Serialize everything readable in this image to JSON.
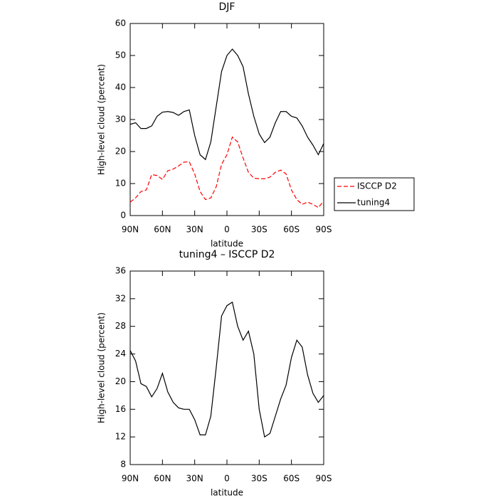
{
  "chart_data": [
    {
      "type": "line",
      "title": "DJF",
      "xlabel": "latitude",
      "ylabel": "High-level cloud (percent)",
      "x": [
        90,
        85,
        80,
        75,
        70,
        65,
        60,
        55,
        50,
        45,
        40,
        35,
        30,
        25,
        20,
        15,
        10,
        5,
        0,
        -5,
        -10,
        -15,
        -20,
        -25,
        -30,
        -35,
        -40,
        -45,
        -50,
        -55,
        -60,
        -65,
        -70,
        -75,
        -80,
        -85,
        -90
      ],
      "xlim": [
        90,
        -90
      ],
      "xticks": [
        {
          "value": 90,
          "label": "90N"
        },
        {
          "value": 60,
          "label": "60N"
        },
        {
          "value": 30,
          "label": "30N"
        },
        0,
        {
          "value": -30,
          "label": "30S"
        },
        {
          "value": -60,
          "label": "60S"
        },
        {
          "value": -90,
          "label": "90S"
        }
      ],
      "ylim": [
        0,
        60
      ],
      "yticks": [
        0,
        10,
        20,
        30,
        40,
        50,
        60
      ],
      "legend": "right",
      "series": [
        {
          "name": "ISCCP D2",
          "color": "#ff0000",
          "linestyle": "dashed",
          "values": [
            4.2,
            5.5,
            7.5,
            8,
            12.8,
            12.5,
            11.3,
            14,
            14.5,
            15.5,
            16.7,
            16.8,
            13,
            7.5,
            5,
            5.5,
            9,
            16,
            19,
            24.5,
            23,
            18,
            13.5,
            11.7,
            11.5,
            11.5,
            12,
            13.5,
            14.2,
            13,
            8,
            5,
            3.5,
            4.2,
            3.5,
            2.5,
            4.5
          ]
        },
        {
          "name": "tuning4",
          "color": "#000000",
          "linestyle": "solid",
          "values": [
            28.5,
            29,
            27.2,
            27.2,
            28,
            31,
            32.3,
            32.5,
            32.2,
            31.3,
            32.5,
            33,
            25,
            19,
            17.5,
            23,
            34,
            45,
            50,
            52,
            50,
            46.5,
            38,
            31,
            25.5,
            22.8,
            24.5,
            29,
            32.5,
            32.5,
            31,
            30.5,
            28,
            24.5,
            22,
            19,
            22.5
          ]
        }
      ]
    },
    {
      "type": "line",
      "title": "tuning4 – ISCCP D2",
      "xlabel": "latitude",
      "ylabel": "High-level cloud (percent)",
      "x": [
        90,
        85,
        80,
        75,
        70,
        65,
        60,
        55,
        50,
        45,
        40,
        35,
        30,
        25,
        20,
        15,
        10,
        5,
        0,
        -5,
        -10,
        -15,
        -20,
        -25,
        -30,
        -35,
        -40,
        -45,
        -50,
        -55,
        -60,
        -65,
        -70,
        -75,
        -80,
        -85,
        -90
      ],
      "xlim": [
        90,
        -90
      ],
      "xticks": [
        {
          "value": 90,
          "label": "90N"
        },
        {
          "value": 60,
          "label": "60N"
        },
        {
          "value": 30,
          "label": "30N"
        },
        0,
        {
          "value": -30,
          "label": "30S"
        },
        {
          "value": -60,
          "label": "60S"
        },
        {
          "value": -90,
          "label": "90S"
        }
      ],
      "ylim": [
        8,
        36
      ],
      "yticks": [
        8,
        12,
        16,
        20,
        24,
        28,
        32,
        36
      ],
      "series": [
        {
          "color": "#000000",
          "linestyle": "solid",
          "values": [
            24.5,
            23,
            19.7,
            19.3,
            17.8,
            19,
            21.2,
            18.5,
            17,
            16.2,
            16,
            16,
            14.5,
            12.3,
            12.3,
            15,
            22,
            29.5,
            31,
            31.5,
            28,
            26,
            27.3,
            24,
            16,
            12,
            12.5,
            15,
            17.5,
            19.5,
            23.5,
            26,
            25,
            21,
            18.3,
            17,
            18
          ]
        }
      ]
    }
  ]
}
